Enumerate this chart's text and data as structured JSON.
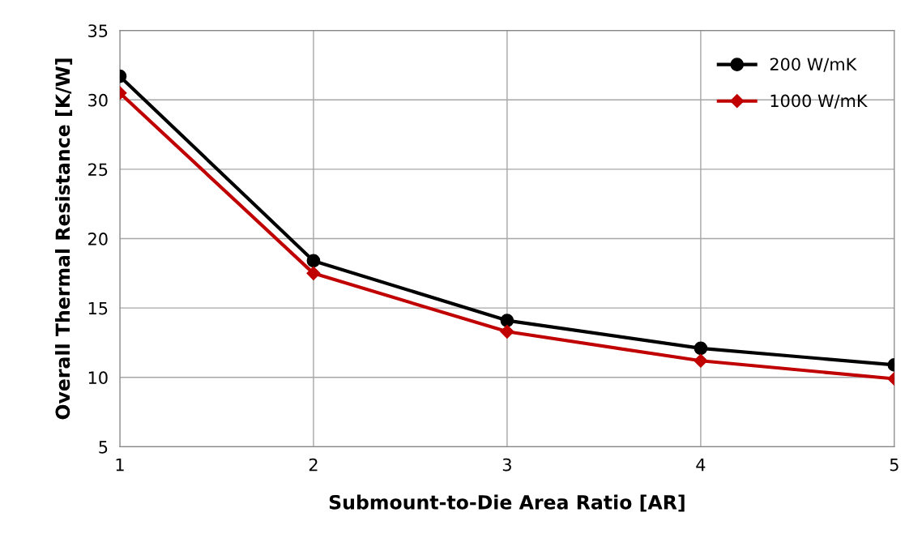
{
  "chart_data": {
    "type": "line",
    "xlabel": "Submount-to-Die Area Ratio [AR]",
    "ylabel": "Overall Thermal Resistance [K/W]",
    "x": [
      1,
      2,
      3,
      4,
      5
    ],
    "series": [
      {
        "name": "200 W/mK",
        "color": "#000000",
        "marker": "circle",
        "values": [
          31.7,
          18.4,
          14.1,
          12.1,
          10.9
        ]
      },
      {
        "name": "1000 W/mK",
        "color": "#c00000",
        "marker": "diamond",
        "values": [
          30.5,
          17.5,
          13.3,
          11.2,
          9.9
        ]
      }
    ],
    "xlim": [
      1,
      5
    ],
    "xticks": [
      1,
      2,
      3,
      4,
      5
    ],
    "ylim": [
      5,
      35
    ],
    "yticks": [
      5,
      10,
      15,
      20,
      25,
      30,
      35
    ],
    "grid": true,
    "legend": "top right",
    "line_style": "solid"
  }
}
